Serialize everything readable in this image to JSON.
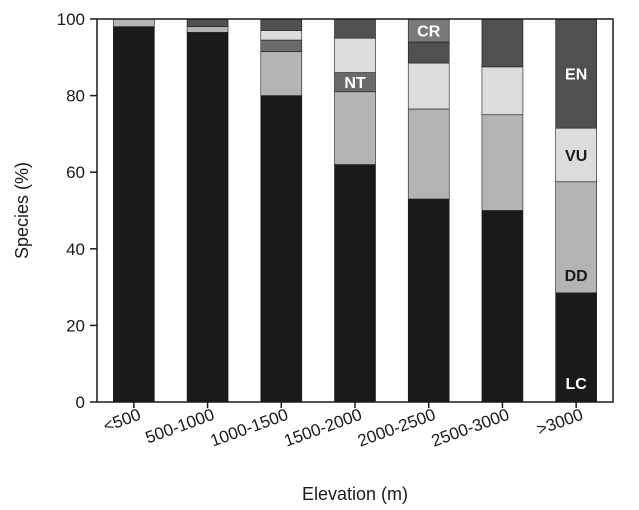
{
  "chart_data": {
    "type": "bar",
    "stacked": true,
    "title": "",
    "xlabel": "Elevation (m)",
    "ylabel": "Species (%)",
    "ylim": [
      0,
      100
    ],
    "yticks": [
      0,
      20,
      40,
      60,
      80,
      100
    ],
    "categories": [
      "<500",
      "500-1000",
      "1000-1500",
      "1500-2000",
      "2000-2500",
      "2500-3000",
      ">3000"
    ],
    "series": [
      {
        "name": "LC",
        "color": "#1a1a1a",
        "values": [
          98,
          96.5,
          80,
          62,
          53,
          50,
          28.5
        ]
      },
      {
        "name": "DD",
        "color": "#b4b4b4",
        "values": [
          2,
          1.5,
          11.5,
          19,
          23.5,
          25,
          29
        ]
      },
      {
        "name": "NT",
        "color": "#6a6a6a",
        "values": [
          0,
          0,
          3,
          5,
          0,
          0,
          0
        ]
      },
      {
        "name": "VU",
        "color": "#dcdcdc",
        "values": [
          0,
          0,
          2.5,
          9,
          12,
          12.5,
          14
        ]
      },
      {
        "name": "EN",
        "color": "#505050",
        "values": [
          0,
          2,
          3,
          5,
          5.5,
          12.5,
          28.5
        ]
      },
      {
        "name": "CR",
        "color": "#7a7a7a",
        "values": [
          0,
          0,
          0,
          0,
          6,
          0,
          0
        ]
      }
    ],
    "annotations": [
      {
        "text": "CR",
        "category": "2000-2500",
        "series": "CR"
      },
      {
        "text": "NT",
        "category": "1500-2000",
        "series": "NT"
      },
      {
        "text": "EN",
        "category": ">3000",
        "series": "EN"
      },
      {
        "text": "VU",
        "category": ">3000",
        "series": "VU"
      },
      {
        "text": "DD",
        "category": ">3000",
        "series": "DD"
      },
      {
        "text": "LC",
        "category": ">3000",
        "series": "LC"
      }
    ]
  }
}
